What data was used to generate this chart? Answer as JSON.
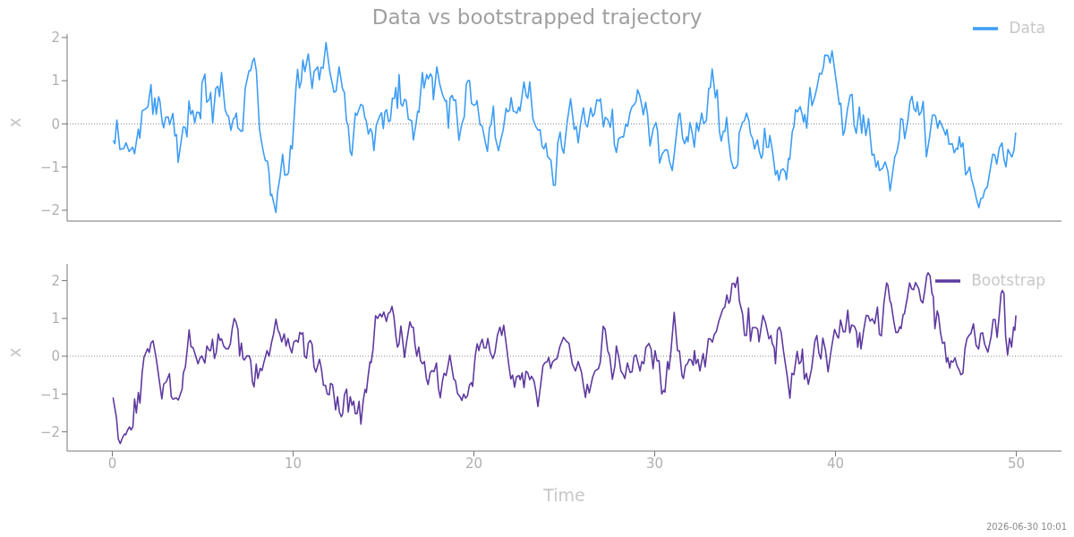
{
  "chart_data": [
    {
      "type": "line",
      "title": "Data vs bootstrapped trajectory",
      "ylabel": "x",
      "xlim": [
        -2.5,
        52.5
      ],
      "xticks": [
        0,
        10,
        20,
        30,
        40,
        50
      ],
      "ylim": [
        -2.25,
        2.08
      ],
      "yticks": [
        -2,
        -1,
        0,
        1,
        2
      ],
      "tick_labels": "y",
      "legend": "top right",
      "grid": false,
      "marker": "none",
      "line_style": "solid",
      "ref_lines": [
        {
          "axis": "y",
          "value": 0,
          "color": "#888888",
          "line_style": "dotted"
        }
      ],
      "series": [
        {
          "name": "Data",
          "color": "#3d9df5",
          "x": [
            0.05,
            0.14,
            0.25,
            0.42,
            0.63,
            0.76,
            0.93,
            1.12,
            1.23,
            1.44,
            1.52,
            1.65,
            1.86,
            1.97,
            2.14,
            2.24,
            2.35,
            2.43,
            2.56,
            2.63,
            2.75,
            2.84,
            2.95,
            3.09,
            3.17,
            3.35,
            3.46,
            3.55,
            3.64,
            3.92,
            4.03,
            4.13,
            4.24,
            4.34,
            4.45,
            4.56,
            4.67,
            4.8,
            4.88,
            4.96,
            5.12,
            5.22,
            5.36,
            5.44,
            5.55,
            5.72,
            5.84,
            5.93,
            6.04,
            6.24,
            6.35,
            6.42,
            6.56,
            6.69,
            6.77,
            6.86,
            6.94,
            7.12,
            7.21,
            7.35,
            7.56,
            7.65,
            7.76,
            7.85,
            7.97,
            8.14,
            8.28,
            8.4,
            8.47,
            8.58,
            8.66,
            8.75,
            8.82,
            9.05,
            9.14,
            9.28,
            9.42,
            9.54,
            9.7,
            9.75,
            9.86,
            9.95,
            10.16,
            10.25,
            10.35,
            10.45,
            10.54,
            10.65,
            10.84,
            11.05,
            11.16,
            11.36,
            11.45,
            11.55,
            11.66,
            11.82,
            12.03,
            12.26,
            12.38,
            12.54,
            12.73,
            12.84,
            12.95,
            13.05,
            13.16,
            13.25,
            13.44,
            13.53,
            13.74,
            13.86,
            13.97,
            14.05,
            14.16,
            14.27,
            14.37,
            14.47,
            14.6,
            14.78,
            14.89,
            14.99,
            15.08,
            15.17,
            15.28,
            15.38,
            15.49,
            15.6,
            15.68,
            15.77,
            15.86,
            15.96,
            16.05,
            16.17,
            16.26,
            16.37,
            16.56,
            16.65,
            16.79,
            16.89,
            16.96,
            17.15,
            17.24,
            17.39,
            17.48,
            17.6,
            17.69,
            17.76,
            17.95,
            18.11,
            18.27,
            18.41,
            18.48,
            18.59,
            18.68,
            18.8,
            18.88,
            18.99,
            19.17,
            19.32,
            19.47,
            19.58,
            19.67,
            19.76,
            19.87,
            20.01,
            20.12,
            20.17,
            20.34,
            20.46,
            20.64,
            20.75,
            20.86,
            20.95,
            21.08,
            21.18,
            21.36,
            21.48,
            21.62,
            21.78,
            21.87,
            21.97,
            22.06,
            22.17,
            22.27,
            22.38,
            22.48,
            22.55,
            22.77,
            22.89,
            22.98,
            23.09,
            23.27,
            23.41,
            23.55,
            23.66,
            23.77,
            23.87,
            23.98,
            24.08,
            24.26,
            24.4,
            24.5,
            24.64,
            24.77,
            24.86,
            24.97,
            25.17,
            25.35,
            25.55,
            25.66,
            25.77,
            25.9,
            26.06,
            26.17,
            26.28,
            26.46,
            26.57,
            26.67,
            26.8,
            26.93,
            27.0,
            27.17,
            27.26,
            27.4,
            27.55,
            27.66,
            27.77,
            27.88,
            28.0,
            28.17,
            28.28,
            28.4,
            28.5,
            28.64,
            28.75,
            28.86,
            28.97,
            29.05,
            29.16,
            29.28,
            29.37,
            29.5,
            29.61,
            29.74,
            29.92,
            30.07,
            30.16,
            30.27,
            30.42,
            30.59,
            30.71,
            30.82,
            30.97,
            31.08,
            31.22,
            31.33,
            31.4,
            31.55,
            31.66,
            31.77,
            31.84,
            31.95,
            32.08,
            32.19,
            32.32,
            32.43,
            32.6,
            32.71,
            32.86,
            32.99,
            33.08,
            33.18,
            33.36,
            33.46,
            33.58,
            33.68,
            33.8,
            33.89,
            33.98,
            34.09,
            34.22,
            34.36,
            34.49,
            34.6,
            34.67,
            34.85,
            34.96,
            35.08,
            35.21,
            35.3,
            35.43,
            35.52,
            35.68,
            35.79,
            35.9,
            35.97,
            36.08,
            36.19,
            36.3,
            36.37,
            36.52,
            36.68,
            36.78,
            36.87,
            36.98,
            37.1,
            37.22,
            37.29,
            37.4,
            37.47,
            37.61,
            37.7,
            37.79,
            37.9,
            38.05,
            38.16,
            38.23,
            38.3,
            38.41,
            38.52,
            38.59,
            38.7,
            38.85,
            38.96,
            39.12,
            39.23,
            39.34,
            39.41,
            39.59,
            39.7,
            39.81,
            39.96,
            40.1,
            40.21,
            40.29,
            40.42,
            40.51,
            40.66,
            40.81,
            40.92,
            41.03,
            41.15,
            41.32,
            41.45,
            41.54,
            41.68,
            41.83,
            42.02,
            42.13,
            42.24,
            42.35,
            42.43,
            42.6,
            42.75,
            42.9,
            43.02,
            43.17,
            43.28,
            43.39,
            43.52,
            43.61,
            43.72,
            43.83,
            44.01,
            44.12,
            44.23,
            44.34,
            44.45,
            44.52,
            44.63,
            44.74,
            44.85,
            45.03,
            45.21,
            45.36,
            45.47,
            45.54,
            45.65,
            45.76,
            45.98,
            46.09,
            46.17,
            46.28,
            46.46,
            46.57,
            46.68,
            46.76,
            46.85,
            46.94,
            47.05,
            47.2,
            47.31,
            47.42,
            47.53,
            47.68,
            47.82,
            47.93,
            48.04,
            48.15,
            48.26,
            48.4,
            48.55,
            48.7,
            48.81,
            48.92,
            49.06,
            49.21,
            49.32,
            49.43,
            49.54,
            49.76,
            49.87,
            49.97
          ],
          "values": [
            -0.38,
            -0.46,
            0.09,
            -0.59,
            -0.57,
            -0.44,
            -0.64,
            -0.54,
            -0.69,
            -0.12,
            -0.33,
            0.3,
            0.35,
            0.4,
            0.91,
            0.22,
            0.6,
            0.22,
            0.63,
            0.53,
            0.07,
            -0.09,
            0.15,
            0.16,
            -0.02,
            0.24,
            -0.28,
            -0.25,
            -0.89,
            -0.07,
            -0.08,
            -0.3,
            0.53,
            0.22,
            0.31,
            0.02,
            0.27,
            0.26,
            0.12,
            0.95,
            1.15,
            0.5,
            0.56,
            0.73,
            0.02,
            0.82,
            0.87,
            0.63,
            1.19,
            0.33,
            0.2,
            0.19,
            -0.15,
            0.11,
            0.14,
            0.25,
            -0.09,
            -0.17,
            -0.16,
            0.82,
            1.23,
            1.23,
            1.45,
            1.52,
            1.22,
            -0.12,
            -0.48,
            -0.74,
            -0.85,
            -0.86,
            -1.09,
            -1.66,
            -1.63,
            -2.05,
            -1.58,
            -1.22,
            -0.7,
            -1.19,
            -1.17,
            -1.12,
            -0.5,
            -0.58,
            0.85,
            1.26,
            0.83,
            0.98,
            1.48,
            1.21,
            1.62,
            0.82,
            1.21,
            1.32,
            1.02,
            1.31,
            1.29,
            1.88,
            1.21,
            0.73,
            0.76,
            1.32,
            0.82,
            0.72,
            0.07,
            -0.05,
            -0.64,
            -0.73,
            0.25,
            0.2,
            0.45,
            0.42,
            0.14,
            0.07,
            -0.24,
            -0.11,
            -0.2,
            -0.62,
            -0.03,
            0.17,
            0.26,
            -0.11,
            0.28,
            0.33,
            0.05,
            0.08,
            0.59,
            0.59,
            0.84,
            0.36,
            1.14,
            0.47,
            0.41,
            0.57,
            0.53,
            0.11,
            0.07,
            -0.37,
            -0.02,
            0.29,
            0.27,
            1.19,
            0.83,
            1.14,
            1.04,
            1.16,
            1.08,
            0.56,
            1.32,
            0.92,
            0.67,
            0.53,
            0.54,
            -0.1,
            0.6,
            0.66,
            0.54,
            0.56,
            -0.38,
            -0.02,
            0.17,
            0.92,
            1.0,
            1.0,
            0.47,
            0.43,
            0.46,
            0.54,
            -0.02,
            -0.05,
            -0.44,
            -0.64,
            -0.09,
            -0.02,
            0.41,
            -0.31,
            -0.62,
            -0.38,
            -0.14,
            0.36,
            0.28,
            0.31,
            0.61,
            0.3,
            0.28,
            0.25,
            0.39,
            0.3,
            0.97,
            0.66,
            0.59,
            0.97,
            0.11,
            -0.05,
            -0.15,
            -0.13,
            -0.51,
            -0.58,
            -0.45,
            -0.76,
            -0.84,
            -1.42,
            -1.42,
            -0.44,
            -0.19,
            -0.54,
            -0.68,
            0.08,
            0.58,
            -0.13,
            -0.06,
            -0.44,
            0.0,
            0.37,
            0.0,
            -0.07,
            0.37,
            0.17,
            0.24,
            0.56,
            0.53,
            0.58,
            -0.07,
            0.15,
            0.1,
            -0.08,
            0.34,
            -0.48,
            -0.66,
            -0.34,
            -0.3,
            -0.3,
            0.0,
            -0.06,
            0.27,
            0.4,
            0.44,
            0.52,
            0.79,
            0.68,
            0.44,
            0.21,
            0.5,
            0.2,
            -0.51,
            -0.11,
            0.03,
            -0.17,
            -0.91,
            -0.69,
            -0.6,
            -0.61,
            -0.87,
            -1.08,
            -0.71,
            -0.17,
            0.21,
            0.25,
            -0.34,
            -0.46,
            -0.3,
            -0.42,
            0.03,
            -0.22,
            -0.54,
            0.03,
            -0.17,
            0.25,
            0.0,
            0.08,
            0.82,
            0.84,
            1.27,
            0.6,
            0.79,
            -0.17,
            -0.4,
            -0.17,
            -0.17,
            0.15,
            -0.4,
            -0.84,
            -1.03,
            -1.02,
            -0.93,
            -0.22,
            0.03,
            0.07,
            0.25,
            0.07,
            -0.23,
            -0.35,
            -0.58,
            -0.37,
            -0.64,
            -0.8,
            -0.71,
            -0.1,
            -0.54,
            -0.54,
            -0.27,
            -0.64,
            -1.18,
            -1.08,
            -1.31,
            -1.08,
            -1.04,
            -1.11,
            -1.29,
            -0.8,
            -0.82,
            -0.18,
            -0.07,
            0.33,
            0.28,
            0.4,
            0.21,
            0.04,
            0.22,
            -0.1,
            0.51,
            0.84,
            0.42,
            0.62,
            0.81,
            1.17,
            1.15,
            1.33,
            1.59,
            1.58,
            1.41,
            1.69,
            1.24,
            0.81,
            0.45,
            0.48,
            -0.26,
            -0.15,
            0.33,
            0.66,
            0.68,
            -0.03,
            -0.22,
            0.39,
            -0.22,
            0.21,
            -0.27,
            0.12,
            -0.72,
            -0.7,
            -1.0,
            -0.86,
            -1.08,
            -1.03,
            -0.88,
            -1.1,
            -1.55,
            -1.1,
            -0.76,
            -0.66,
            -0.38,
            0.12,
            0.1,
            -0.34,
            0.1,
            0.51,
            0.64,
            0.35,
            0.28,
            0.51,
            0.2,
            0.27,
            0.52,
            -0.76,
            -0.29,
            0.2,
            0.21,
            0.17,
            -0.1,
            0.08,
            -0.13,
            -0.26,
            -0.13,
            -0.47,
            -0.46,
            -0.67,
            -0.57,
            -0.59,
            -0.3,
            -0.54,
            -0.44,
            -1.18,
            -1.11,
            -1.0,
            -1.28,
            -1.51,
            -1.78,
            -1.94,
            -1.73,
            -1.71,
            -1.53,
            -1.46,
            -1.07,
            -0.7,
            -0.72,
            -0.93,
            -0.56,
            -0.44,
            -0.82,
            -1.0,
            -0.59,
            -0.77,
            -0.62,
            -0.2
          ]
        }
      ]
    },
    {
      "type": "line",
      "xlabel": "Time",
      "ylabel": "x",
      "xlim": [
        -2.5,
        52.5
      ],
      "xticks": [
        0,
        10,
        20,
        30,
        40,
        50
      ],
      "ylim": [
        -2.51,
        2.44
      ],
      "yticks": [
        -2,
        -1,
        0,
        1,
        2
      ],
      "legend": "top right",
      "grid": false,
      "marker": "none",
      "line_style": "solid",
      "annotations": [
        "2026-06-30 10:01"
      ],
      "ref_lines": [
        {
          "axis": "y",
          "value": 0,
          "color": "#888888",
          "line_style": "dotted"
        }
      ],
      "series": [
        {
          "name": "Bootstrap",
          "color": "#5e3a9f",
          "x": [
            0.04,
            0.23,
            0.33,
            0.44,
            0.56,
            0.67,
            0.74,
            0.84,
            0.95,
            1.04,
            1.14,
            1.23,
            1.33,
            1.44,
            1.53,
            1.65,
            1.75,
            1.95,
            2.04,
            2.14,
            2.25,
            2.42,
            2.56,
            2.74,
            2.84,
            2.98,
            3.16,
            3.26,
            3.37,
            3.53,
            3.65,
            3.86,
            3.93,
            4.04,
            4.14,
            4.25,
            4.35,
            4.46,
            4.56,
            4.74,
            4.84,
            4.95,
            5.12,
            5.23,
            5.37,
            5.44,
            5.54,
            5.65,
            5.75,
            5.86,
            5.95,
            6.04,
            6.16,
            6.28,
            6.42,
            6.53,
            6.63,
            6.74,
            6.84,
            6.95,
            7.04,
            7.14,
            7.23,
            7.3,
            7.44,
            7.56,
            7.65,
            7.75,
            7.84,
            7.96,
            8.05,
            8.18,
            8.28,
            8.39,
            8.56,
            8.67,
            8.81,
            8.91,
            9.05,
            9.16,
            9.26,
            9.37,
            9.51,
            9.61,
            9.72,
            9.82,
            9.93,
            10.04,
            10.18,
            10.28,
            10.37,
            10.46,
            10.54,
            10.63,
            10.74,
            10.84,
            10.95,
            11.05,
            11.16,
            11.26,
            11.46,
            11.56,
            11.68,
            11.79,
            11.89,
            12.0,
            12.07,
            12.18,
            12.25,
            12.35,
            12.46,
            12.56,
            12.67,
            12.74,
            12.84,
            12.96,
            13.05,
            13.16,
            13.26,
            13.35,
            13.44,
            13.54,
            13.65,
            13.75,
            13.88,
            13.98,
            14.05,
            14.14,
            14.25,
            14.32,
            14.42,
            14.56,
            14.67,
            14.81,
            14.91,
            15.02,
            15.16,
            15.26,
            15.37,
            15.47,
            15.58,
            15.68,
            15.77,
            15.86,
            15.96,
            16.04,
            16.16,
            16.28,
            16.46,
            16.56,
            16.65,
            16.74,
            16.84,
            16.95,
            17.05,
            17.16,
            17.26,
            17.37,
            17.47,
            17.58,
            17.68,
            17.79,
            17.93,
            18.04,
            18.14,
            18.26,
            18.35,
            18.46,
            18.56,
            18.67,
            18.88,
            18.98,
            19.09,
            19.23,
            19.33,
            19.44,
            19.54,
            19.65,
            19.75,
            19.86,
            19.93,
            20.07,
            20.18,
            20.28,
            20.35,
            20.46,
            20.56,
            20.67,
            20.77,
            20.91,
            21.05,
            21.16,
            21.3,
            21.44,
            21.54,
            21.65,
            21.79,
            21.93,
            22.04,
            22.14,
            22.25,
            22.35,
            22.49,
            22.56,
            22.67,
            22.77,
            22.88,
            22.98,
            23.09,
            23.19,
            23.33,
            23.44,
            23.54,
            23.68,
            23.82,
            23.93,
            24.05,
            24.14,
            24.25,
            24.35,
            24.46,
            24.6,
            24.75,
            24.89,
            24.96,
            25.11,
            25.26,
            25.44,
            25.62,
            25.77,
            25.95,
            26.06,
            26.17,
            26.27,
            26.38,
            26.57,
            26.71,
            26.89,
            26.99,
            27.15,
            27.26,
            27.4,
            27.51,
            27.66,
            27.8,
            27.88,
            28.02,
            28.13,
            28.24,
            28.35,
            28.49,
            28.64,
            28.75,
            28.86,
            28.97,
            29.08,
            29.19,
            29.29,
            29.4,
            29.51,
            29.68,
            29.8,
            29.91,
            30.02,
            30.13,
            30.24,
            30.39,
            30.5,
            30.57,
            30.71,
            30.79,
            30.9,
            31.08,
            31.26,
            31.37,
            31.51,
            31.59,
            31.7,
            31.81,
            31.91,
            32.02,
            32.13,
            32.2,
            32.28,
            32.39,
            32.5,
            32.68,
            32.79,
            32.97,
            33.08,
            33.19,
            33.3,
            33.41,
            33.55,
            33.77,
            33.88,
            33.99,
            34.1,
            34.17,
            34.28,
            34.39,
            34.46,
            34.59,
            34.68,
            34.86,
            34.97,
            35.08,
            35.19,
            35.3,
            35.41,
            35.59,
            35.7,
            35.77,
            35.99,
            36.13,
            36.32,
            36.43,
            36.5,
            36.61,
            36.68,
            36.79,
            36.9,
            37.0,
            37.12,
            37.34,
            37.48,
            37.59,
            37.7,
            37.88,
            37.99,
            38.1,
            38.17,
            38.28,
            38.39,
            38.5,
            38.68,
            38.86,
            38.97,
            39.08,
            39.19,
            39.3,
            39.45,
            39.59,
            39.77,
            39.95,
            40.1,
            40.17,
            40.28,
            40.43,
            40.54,
            40.68,
            40.79,
            40.9,
            41.05,
            41.16,
            41.23,
            41.34,
            41.41,
            41.56,
            41.7,
            41.81,
            41.92,
            42.03,
            42.17,
            42.32,
            42.43,
            42.54,
            42.68,
            42.83,
            42.9,
            43.01,
            43.08,
            43.23,
            43.34,
            43.45,
            43.56,
            43.63,
            43.74,
            43.81,
            43.96,
            44.1,
            44.21,
            44.32,
            44.43,
            44.61,
            44.72,
            44.83,
            44.94,
            45.05,
            45.12,
            45.23,
            45.34,
            45.41,
            45.5,
            45.63,
            45.7,
            45.81,
            45.92,
            46.03,
            46.14,
            46.21,
            46.32,
            46.39,
            46.5,
            46.61,
            46.72,
            46.83,
            46.94,
            47.05,
            47.16,
            47.27,
            47.38,
            47.49,
            47.63,
            47.78,
            47.92,
            48.03,
            48.14,
            48.25,
            48.43,
            48.61,
            48.72,
            48.83,
            48.94,
            49.05,
            49.16,
            49.23,
            49.32,
            49.41,
            49.52,
            49.63,
            49.74,
            49.85,
            49.92,
            49.98
          ],
          "values": [
            -1.09,
            -1.63,
            -2.19,
            -2.31,
            -2.16,
            -2.06,
            -2.08,
            -1.96,
            -1.87,
            -1.95,
            -1.86,
            -1.13,
            -1.5,
            -0.96,
            -1.24,
            -0.44,
            -0.03,
            0.2,
            0.1,
            0.35,
            0.41,
            -0.03,
            -0.51,
            -1.13,
            -0.74,
            -0.68,
            -0.46,
            -1.07,
            -1.14,
            -1.1,
            -1.16,
            -0.87,
            -0.44,
            -0.29,
            0.16,
            0.7,
            0.25,
            0.23,
            0.09,
            -0.2,
            -0.06,
            0.01,
            -0.18,
            0.27,
            0.15,
            0.15,
            0.45,
            -0.06,
            0.1,
            0.59,
            0.42,
            0.46,
            0.27,
            0.2,
            0.2,
            0.33,
            0.72,
            1.0,
            0.91,
            0.7,
            0.01,
            0.35,
            -0.06,
            -0.1,
            0.01,
            0.01,
            -0.1,
            -0.68,
            -0.81,
            -0.21,
            -0.59,
            -0.32,
            -0.38,
            -0.15,
            0.15,
            0.0,
            0.37,
            0.57,
            0.98,
            0.7,
            0.59,
            0.38,
            0.59,
            0.27,
            0.47,
            0.23,
            0.09,
            0.38,
            0.42,
            0.37,
            0.63,
            0.59,
            0.62,
            0.01,
            -0.05,
            0.35,
            0.42,
            0.31,
            -0.29,
            -0.42,
            -0.08,
            -0.32,
            -0.77,
            -0.77,
            -1.0,
            -1.02,
            -0.72,
            -0.75,
            -1.0,
            -1.42,
            -1.07,
            -1.48,
            -1.6,
            -1.52,
            -1.02,
            -0.87,
            -1.48,
            -1.07,
            -1.3,
            -1.19,
            -1.52,
            -1.52,
            -1.19,
            -1.8,
            -1.17,
            -0.88,
            -0.96,
            -0.57,
            -0.15,
            -0.17,
            0.18,
            1.07,
            1.0,
            1.12,
            1.04,
            1.17,
            0.92,
            1.13,
            1.17,
            1.32,
            1.04,
            0.55,
            0.24,
            0.33,
            0.8,
            0.5,
            -0.03,
            0.38,
            0.91,
            0.77,
            0.77,
            0.31,
            0.0,
            0.24,
            -0.12,
            -0.2,
            -0.14,
            -0.59,
            -0.75,
            -0.44,
            -0.38,
            -0.41,
            -0.18,
            -0.85,
            -1.1,
            -0.66,
            -0.45,
            -0.51,
            -0.27,
            0.03,
            -0.6,
            -0.65,
            -0.98,
            -1.07,
            -1.17,
            -1.0,
            -1.11,
            -1.04,
            -0.77,
            -0.7,
            -0.8,
            0.0,
            0.33,
            0.15,
            0.31,
            0.45,
            0.22,
            0.22,
            0.47,
            0.09,
            -0.06,
            0.09,
            0.55,
            0.77,
            0.55,
            0.82,
            0.31,
            -0.23,
            -0.6,
            -0.5,
            -0.82,
            -0.55,
            -0.51,
            -0.62,
            -0.44,
            -0.83,
            -0.4,
            -0.44,
            -0.62,
            -0.53,
            -0.66,
            -0.96,
            -1.33,
            -0.81,
            -0.25,
            -0.17,
            -0.15,
            -0.03,
            -0.32,
            -0.15,
            -0.1,
            -0.06,
            0.25,
            0.42,
            0.5,
            0.4,
            0.34,
            -0.2,
            -0.39,
            -0.14,
            -0.42,
            -0.78,
            -1.09,
            -0.74,
            -0.97,
            -0.55,
            -0.38,
            -0.33,
            -0.16,
            0.79,
            0.71,
            0.15,
            0.01,
            -0.61,
            -0.25,
            0.27,
            -0.04,
            -0.39,
            -0.47,
            -0.59,
            -0.18,
            -0.43,
            -0.41,
            0.0,
            0.03,
            -0.18,
            -0.39,
            -0.14,
            -0.2,
            0.23,
            0.34,
            0.19,
            -0.33,
            0.15,
            -0.12,
            -0.12,
            -1.0,
            -0.9,
            -0.95,
            -0.14,
            -0.35,
            0.14,
            1.16,
            0.15,
            0.14,
            -0.51,
            -0.59,
            -0.25,
            -0.2,
            -0.08,
            -0.1,
            -0.24,
            0.15,
            -0.2,
            -0.08,
            -0.39,
            0.07,
            -0.28,
            0.46,
            0.46,
            0.37,
            0.58,
            0.65,
            0.93,
            1.25,
            1.3,
            1.62,
            1.4,
            1.47,
            1.92,
            1.93,
            1.82,
            2.09,
            1.47,
            1.12,
            0.55,
            0.55,
            1.28,
            0.4,
            0.76,
            0.76,
            0.71,
            0.38,
            1.08,
            0.89,
            0.46,
            0.55,
            0.34,
            0.23,
            -0.2,
            0.69,
            0.77,
            0.62,
            0.15,
            -0.56,
            -1.11,
            -0.45,
            -0.49,
            0.13,
            -0.2,
            -0.14,
            0.19,
            -0.61,
            -0.45,
            -0.74,
            -0.33,
            0.4,
            0.55,
            0.09,
            -0.07,
            0.48,
            0.15,
            -0.41,
            0.19,
            0.71,
            0.52,
            0.48,
            0.96,
            0.65,
            0.65,
            1.22,
            0.62,
            0.83,
            0.79,
            0.65,
            0.24,
            0.62,
            0.19,
            0.69,
            1.08,
            1.07,
            0.93,
            0.99,
            0.86,
            1.3,
            0.58,
            0.54,
            1.41,
            1.94,
            1.88,
            1.47,
            1.39,
            0.91,
            0.63,
            0.63,
            0.78,
            0.73,
            1.1,
            1.12,
            1.51,
            1.94,
            1.78,
            1.76,
            1.95,
            1.78,
            1.48,
            1.41,
            1.74,
            2.13,
            2.21,
            2.13,
            1.66,
            1.58,
            0.73,
            1.2,
            1.08,
            0.62,
            0.34,
            0.37,
            -0.16,
            -0.04,
            -0.31,
            -0.12,
            -0.16,
            -0.04,
            -0.25,
            -0.35,
            -0.49,
            -0.45,
            0.19,
            0.46,
            0.55,
            0.6,
            0.86,
            0.29,
            0.19,
            0.6,
            0.62,
            0.32,
            0.11,
            0.52,
            0.97,
            0.97,
            0.5,
            1.04,
            1.66,
            1.74,
            1.66,
            0.54,
            0.03,
            0.48,
            0.24,
            0.77,
            0.69,
            1.08
          ]
        }
      ]
    }
  ]
}
